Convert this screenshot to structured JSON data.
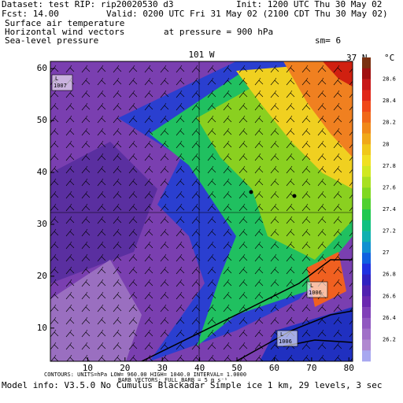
{
  "header": {
    "dataset": "Dataset: test  RIP: rip20020530  d3",
    "init": "Init: 1200 UTC Thu 30 May 02",
    "fcst": "Fcst:    14.00",
    "valid": "Valid: 0200 UTC Fri 31 May 02 (2100 CDT Thu 30 May 02)",
    "fields": [
      "Surface air temperature",
      "Horizontal wind vectors",
      "Sea-level pressure"
    ],
    "pressure": "at pressure =  900 hPa",
    "sm": "sm= 6"
  },
  "plot": {
    "meridian": "101 W",
    "parallel": "37 N",
    "xlim": [
      0,
      81
    ],
    "ylim": [
      3.6,
      61.4
    ],
    "xticks": [
      10,
      20,
      30,
      40,
      50,
      60,
      70,
      80
    ],
    "yticks": [
      10,
      20,
      30,
      40,
      50,
      60
    ],
    "unit": "°C",
    "colorbar": [
      "28.6",
      "28.4",
      "28.2",
      "28",
      "27.8",
      "27.6",
      "27.4",
      "27.2",
      "27",
      "26.8",
      "26.6",
      "26.4",
      "26.2"
    ],
    "lows": [
      {
        "letter": "L",
        "value": "1007"
      },
      {
        "letter": "L",
        "value": "1006"
      },
      {
        "letter": "L",
        "value": "1006"
      }
    ]
  },
  "footer": [
    "CONTOURS: UNITS=hPa   LOW=  960.00     HIGH=  1040.0     INTERVAL=   1.0000",
    "BARB VECTORS: FULL BARB = 5 m s⁻¹",
    "Model info: V3.5.0 No Cumulus Blackadar  Simple ice   1 km,  29 levels,    3 sec"
  ]
}
